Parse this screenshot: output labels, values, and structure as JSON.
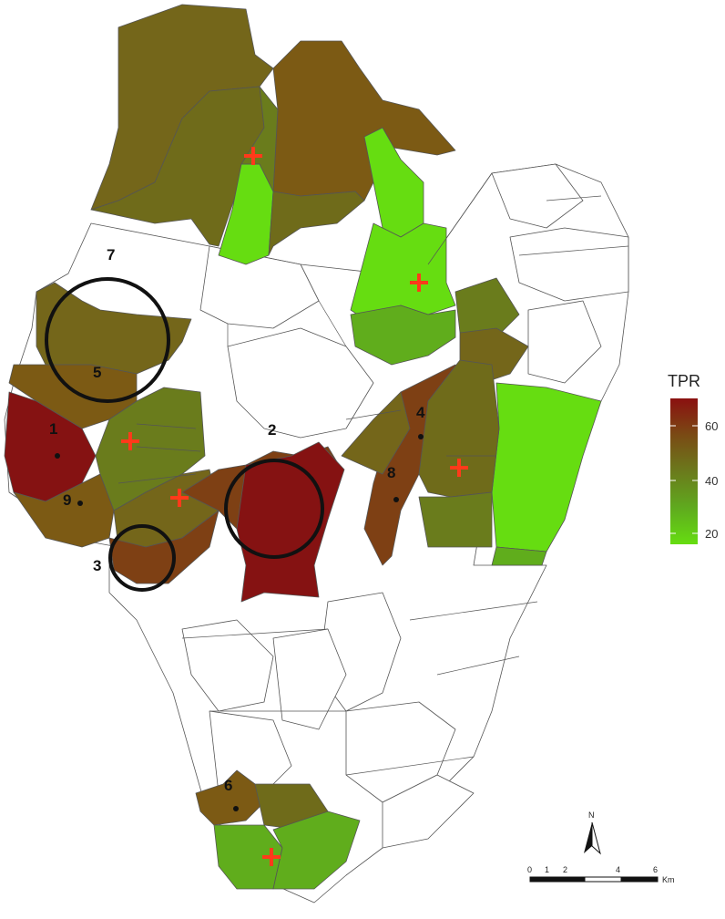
{
  "legend": {
    "title": "TPR",
    "ticks": [
      "60",
      "40",
      "20"
    ],
    "gradient": [
      "#8b1010",
      "#7a4a14",
      "#6b7a1c",
      "#5faa1e",
      "#66dd11"
    ]
  },
  "region_labels": [
    "1",
    "2",
    "3",
    "4",
    "5",
    "6",
    "7",
    "8",
    "9"
  ],
  "north_arrow": {
    "label": "N",
    "icon": "north-arrow-icon"
  },
  "scale_bar": {
    "labels": [
      "0",
      "1",
      "2",
      "4",
      "6"
    ],
    "unit": "Km"
  },
  "colors": {
    "dark_red": "#851212",
    "rust": "#7e4014",
    "brown": "#7c5a14",
    "olive": "#6f6b1a",
    "olive_green": "#6a7c1c",
    "green": "#60ad1c",
    "bright_green": "#66dd11",
    "cross": "#ff3a1a",
    "circle": "#111111"
  }
}
